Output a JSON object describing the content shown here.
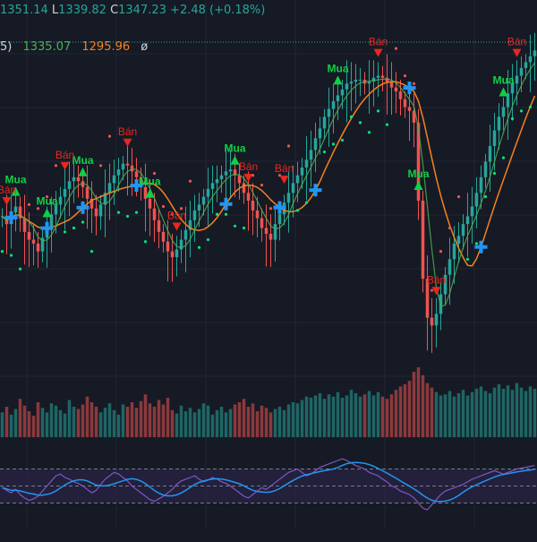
{
  "legend": {
    "ohlc": {
      "h_label": "",
      "h_value": "1351.14",
      "l_label": "L",
      "l_value": "1339.82",
      "c_label": "C",
      "c_value": "1347.23",
      "change": "+2.48 (+0.18%)"
    },
    "indicators": {
      "suffix": "5)",
      "ma_fast": "1335.07",
      "ma_slow": "1295.96",
      "empty_symbol": "ø"
    }
  },
  "colors": {
    "background": "#161a25",
    "grid": "#232733",
    "up": "#26a69a",
    "down": "#ef5350",
    "ma_green": "#4caf50",
    "ma_orange": "#f5821f",
    "psar": "#00e676",
    "cross": "#2196f3",
    "buy": "#0ed145",
    "sell": "#e8281e",
    "rsi_line": "#7e57c2",
    "rsi_signal": "#2196f3",
    "rsi_band": "#2a2446",
    "price_line": "#26a69a"
  },
  "signals": {
    "buy_label": "Mua",
    "sell_label": "Bán"
  },
  "chart_data": {
    "type": "candlestick",
    "title": "",
    "bars": 120,
    "series": [
      {
        "name": "price",
        "values": [
          1262,
          1258,
          1264,
          1267,
          1261,
          1254,
          1250,
          1248,
          1244,
          1251,
          1256,
          1263,
          1268,
          1272,
          1276,
          1280,
          1282,
          1280,
          1277,
          1271,
          1266,
          1262,
          1268,
          1274,
          1279,
          1283,
          1286,
          1289,
          1288,
          1285,
          1282,
          1277,
          1271,
          1266,
          1260,
          1254,
          1249,
          1244,
          1241,
          1245,
          1250,
          1255,
          1260,
          1265,
          1268,
          1272,
          1276,
          1279,
          1281,
          1283,
          1285,
          1286,
          1283,
          1279,
          1274,
          1270,
          1265,
          1261,
          1256,
          1253,
          1250,
          1258,
          1263,
          1269,
          1274,
          1279,
          1283,
          1287,
          1291,
          1296,
          1302,
          1307,
          1313,
          1317,
          1321,
          1324,
          1327,
          1330,
          1331,
          1332,
          1332,
          1330,
          1331,
          1333,
          1334,
          1333,
          1331,
          1328,
          1326,
          1322,
          1318,
          1316,
          1310,
          1270,
          1230,
          1210,
          1206,
          1212,
          1222,
          1232,
          1240,
          1248,
          1252,
          1258,
          1262,
          1267,
          1274,
          1282,
          1290,
          1298,
          1306,
          1313,
          1318,
          1325,
          1330,
          1334,
          1338,
          1341,
          1344,
          1347
        ]
      },
      {
        "name": "volume",
        "values": [
          22,
          27,
          20,
          25,
          34,
          28,
          23,
          19,
          31,
          26,
          22,
          30,
          28,
          24,
          21,
          33,
          27,
          25,
          29,
          36,
          31,
          27,
          22,
          26,
          30,
          24,
          20,
          29,
          27,
          31,
          26,
          32,
          38,
          30,
          27,
          33,
          29,
          35,
          24,
          21,
          28,
          23,
          26,
          22,
          25,
          30,
          28,
          20,
          24,
          27,
          22,
          25,
          29,
          31,
          34,
          27,
          30,
          23,
          28,
          26,
          22,
          25,
          27,
          24,
          29,
          31,
          30,
          33,
          36,
          35,
          37,
          39,
          34,
          38,
          36,
          40,
          35,
          37,
          42,
          39,
          36,
          38,
          41,
          37,
          40,
          36,
          34,
          38,
          42,
          45,
          47,
          50,
          58,
          62,
          55,
          48,
          44,
          40,
          37,
          38,
          41,
          36,
          39,
          42,
          37,
          40,
          43,
          45,
          41,
          39,
          44,
          47,
          43,
          46,
          42,
          48,
          44,
          41,
          45,
          43
        ]
      },
      {
        "name": "rsi",
        "values": [
          48,
          45,
          42,
          46,
          40,
          36,
          33,
          35,
          38,
          44,
          50,
          56,
          62,
          64,
          60,
          58,
          55,
          53,
          50,
          46,
          42,
          45,
          52,
          58,
          62,
          66,
          64,
          60,
          56,
          50,
          46,
          42,
          38,
          34,
          32,
          35,
          38,
          42,
          46,
          52,
          56,
          58,
          60,
          62,
          58,
          55,
          57,
          60,
          58,
          55,
          53,
          50,
          46,
          42,
          38,
          36,
          40,
          44,
          48,
          46,
          50,
          54,
          58,
          62,
          66,
          68,
          70,
          66,
          62,
          64,
          68,
          72,
          74,
          76,
          78,
          80,
          82,
          80,
          77,
          74,
          72,
          70,
          66,
          64,
          62,
          58,
          55,
          50,
          48,
          44,
          42,
          40,
          36,
          30,
          24,
          22,
          28,
          34,
          40,
          44,
          46,
          48,
          50,
          52,
          55,
          58,
          60,
          62,
          64,
          66,
          68,
          66,
          64,
          66,
          68,
          70,
          71,
          72,
          73,
          74
        ]
      }
    ],
    "buy_signals": [
      3,
      10,
      18,
      33,
      52,
      75,
      93,
      112
    ],
    "sell_signals": [
      1,
      14,
      28,
      39,
      55,
      63,
      84,
      97,
      115
    ],
    "crossovers": [
      2,
      10,
      18,
      30,
      50,
      62,
      70,
      91,
      107
    ],
    "ylim": [
      1180,
      1360
    ],
    "rsi_bands": [
      70,
      50,
      30
    ]
  }
}
